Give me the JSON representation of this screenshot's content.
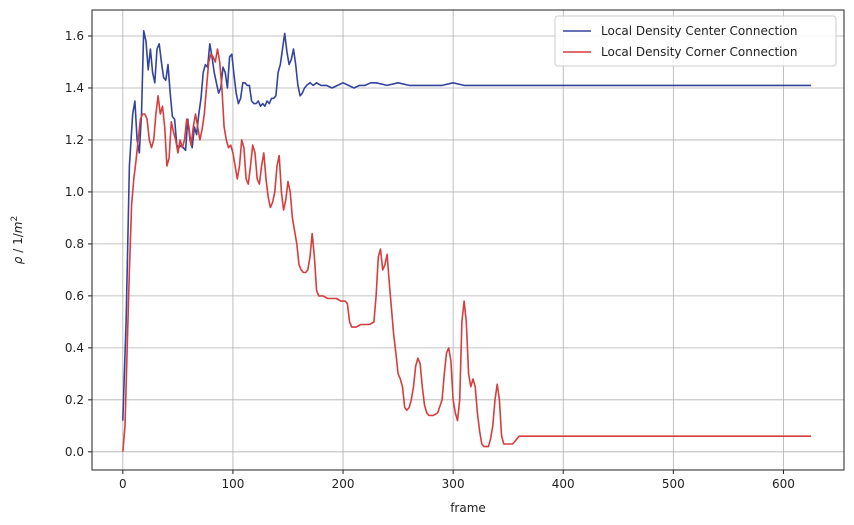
{
  "chart_data": {
    "type": "line",
    "xlabel": "frame",
    "ylabel_math": {
      "var": "ρ",
      "sep": " / 1/",
      "unit": "m",
      "exp": "2"
    },
    "xlim": [
      -28,
      655
    ],
    "ylim": [
      -0.07,
      1.7
    ],
    "xticks": [
      0,
      100,
      200,
      300,
      400,
      500,
      600
    ],
    "yticks": [
      0.0,
      0.2,
      0.4,
      0.6,
      0.8,
      1.0,
      1.2,
      1.4,
      1.6
    ],
    "ytick_labels": [
      "0.0",
      "0.2",
      "0.4",
      "0.6",
      "0.8",
      "1.0",
      "1.2",
      "1.4",
      "1.6"
    ],
    "grid": true,
    "legend_position": "top-right",
    "series": [
      {
        "name": "Local Density Center Connection",
        "color": "#33449c",
        "points": [
          [
            0,
            0.12
          ],
          [
            3,
            0.5
          ],
          [
            6,
            1.1
          ],
          [
            9,
            1.3
          ],
          [
            11,
            1.35
          ],
          [
            13,
            1.2
          ],
          [
            15,
            1.15
          ],
          [
            17,
            1.3
          ],
          [
            19,
            1.62
          ],
          [
            21,
            1.58
          ],
          [
            23,
            1.47
          ],
          [
            25,
            1.55
          ],
          [
            27,
            1.46
          ],
          [
            29,
            1.42
          ],
          [
            31,
            1.55
          ],
          [
            33,
            1.57
          ],
          [
            35,
            1.5
          ],
          [
            37,
            1.44
          ],
          [
            39,
            1.43
          ],
          [
            41,
            1.49
          ],
          [
            43,
            1.38
          ],
          [
            45,
            1.29
          ],
          [
            47,
            1.28
          ],
          [
            49,
            1.18
          ],
          [
            51,
            1.17
          ],
          [
            53,
            1.18
          ],
          [
            55,
            1.17
          ],
          [
            57,
            1.16
          ],
          [
            59,
            1.28
          ],
          [
            61,
            1.2
          ],
          [
            63,
            1.17
          ],
          [
            65,
            1.25
          ],
          [
            67,
            1.22
          ],
          [
            69,
            1.3
          ],
          [
            71,
            1.36
          ],
          [
            73,
            1.46
          ],
          [
            75,
            1.49
          ],
          [
            77,
            1.48
          ],
          [
            79,
            1.57
          ],
          [
            81,
            1.52
          ],
          [
            83,
            1.46
          ],
          [
            85,
            1.42
          ],
          [
            87,
            1.38
          ],
          [
            89,
            1.4
          ],
          [
            91,
            1.48
          ],
          [
            93,
            1.46
          ],
          [
            95,
            1.4
          ],
          [
            97,
            1.52
          ],
          [
            99,
            1.53
          ],
          [
            101,
            1.45
          ],
          [
            103,
            1.38
          ],
          [
            105,
            1.34
          ],
          [
            107,
            1.36
          ],
          [
            109,
            1.42
          ],
          [
            111,
            1.42
          ],
          [
            113,
            1.41
          ],
          [
            115,
            1.41
          ],
          [
            117,
            1.35
          ],
          [
            119,
            1.34
          ],
          [
            121,
            1.34
          ],
          [
            123,
            1.35
          ],
          [
            125,
            1.33
          ],
          [
            127,
            1.34
          ],
          [
            129,
            1.33
          ],
          [
            131,
            1.35
          ],
          [
            133,
            1.34
          ],
          [
            135,
            1.36
          ],
          [
            137,
            1.36
          ],
          [
            139,
            1.37
          ],
          [
            141,
            1.46
          ],
          [
            143,
            1.49
          ],
          [
            145,
            1.55
          ],
          [
            147,
            1.61
          ],
          [
            149,
            1.54
          ],
          [
            151,
            1.49
          ],
          [
            153,
            1.51
          ],
          [
            155,
            1.55
          ],
          [
            157,
            1.49
          ],
          [
            159,
            1.41
          ],
          [
            161,
            1.37
          ],
          [
            163,
            1.38
          ],
          [
            165,
            1.4
          ],
          [
            167,
            1.41
          ],
          [
            170,
            1.42
          ],
          [
            173,
            1.41
          ],
          [
            176,
            1.42
          ],
          [
            180,
            1.41
          ],
          [
            185,
            1.41
          ],
          [
            190,
            1.4
          ],
          [
            195,
            1.41
          ],
          [
            200,
            1.42
          ],
          [
            205,
            1.41
          ],
          [
            210,
            1.4
          ],
          [
            215,
            1.41
          ],
          [
            220,
            1.41
          ],
          [
            225,
            1.42
          ],
          [
            230,
            1.42
          ],
          [
            240,
            1.41
          ],
          [
            250,
            1.42
          ],
          [
            260,
            1.41
          ],
          [
            270,
            1.41
          ],
          [
            280,
            1.41
          ],
          [
            290,
            1.41
          ],
          [
            300,
            1.42
          ],
          [
            310,
            1.41
          ],
          [
            320,
            1.41
          ],
          [
            330,
            1.41
          ],
          [
            340,
            1.41
          ],
          [
            360,
            1.41
          ],
          [
            400,
            1.41
          ],
          [
            450,
            1.41
          ],
          [
            500,
            1.41
          ],
          [
            550,
            1.41
          ],
          [
            600,
            1.41
          ],
          [
            625,
            1.41
          ]
        ]
      },
      {
        "name": "Local Density Corner Connection",
        "color": "#d63d3d",
        "points": [
          [
            0,
            0.0
          ],
          [
            2,
            0.1
          ],
          [
            4,
            0.4
          ],
          [
            6,
            0.7
          ],
          [
            8,
            0.95
          ],
          [
            10,
            1.05
          ],
          [
            12,
            1.12
          ],
          [
            14,
            1.2
          ],
          [
            16,
            1.28
          ],
          [
            18,
            1.3
          ],
          [
            20,
            1.3
          ],
          [
            22,
            1.28
          ],
          [
            24,
            1.2
          ],
          [
            26,
            1.17
          ],
          [
            28,
            1.2
          ],
          [
            30,
            1.3
          ],
          [
            32,
            1.37
          ],
          [
            34,
            1.3
          ],
          [
            36,
            1.33
          ],
          [
            38,
            1.25
          ],
          [
            40,
            1.1
          ],
          [
            42,
            1.13
          ],
          [
            44,
            1.27
          ],
          [
            46,
            1.23
          ],
          [
            48,
            1.2
          ],
          [
            50,
            1.15
          ],
          [
            52,
            1.2
          ],
          [
            54,
            1.17
          ],
          [
            56,
            1.2
          ],
          [
            58,
            1.28
          ],
          [
            60,
            1.25
          ],
          [
            62,
            1.18
          ],
          [
            64,
            1.25
          ],
          [
            66,
            1.3
          ],
          [
            68,
            1.25
          ],
          [
            70,
            1.2
          ],
          [
            72,
            1.24
          ],
          [
            74,
            1.3
          ],
          [
            76,
            1.4
          ],
          [
            78,
            1.5
          ],
          [
            80,
            1.53
          ],
          [
            82,
            1.52
          ],
          [
            84,
            1.5
          ],
          [
            86,
            1.55
          ],
          [
            88,
            1.5
          ],
          [
            90,
            1.4
          ],
          [
            92,
            1.25
          ],
          [
            94,
            1.2
          ],
          [
            96,
            1.17
          ],
          [
            98,
            1.18
          ],
          [
            100,
            1.15
          ],
          [
            102,
            1.1
          ],
          [
            104,
            1.05
          ],
          [
            106,
            1.1
          ],
          [
            108,
            1.2
          ],
          [
            110,
            1.17
          ],
          [
            112,
            1.05
          ],
          [
            114,
            1.03
          ],
          [
            116,
            1.1
          ],
          [
            118,
            1.18
          ],
          [
            120,
            1.15
          ],
          [
            122,
            1.05
          ],
          [
            124,
            1.03
          ],
          [
            126,
            1.1
          ],
          [
            128,
            1.15
          ],
          [
            130,
            1.05
          ],
          [
            132,
            0.98
          ],
          [
            134,
            0.94
          ],
          [
            136,
            0.96
          ],
          [
            138,
            1.0
          ],
          [
            140,
            1.1
          ],
          [
            142,
            1.14
          ],
          [
            144,
            1.0
          ],
          [
            146,
            0.93
          ],
          [
            148,
            0.97
          ],
          [
            150,
            1.04
          ],
          [
            152,
            1.0
          ],
          [
            154,
            0.9
          ],
          [
            156,
            0.85
          ],
          [
            158,
            0.8
          ],
          [
            160,
            0.72
          ],
          [
            162,
            0.7
          ],
          [
            164,
            0.69
          ],
          [
            166,
            0.69
          ],
          [
            168,
            0.7
          ],
          [
            170,
            0.75
          ],
          [
            172,
            0.84
          ],
          [
            174,
            0.75
          ],
          [
            176,
            0.62
          ],
          [
            178,
            0.6
          ],
          [
            182,
            0.6
          ],
          [
            186,
            0.59
          ],
          [
            190,
            0.59
          ],
          [
            194,
            0.59
          ],
          [
            198,
            0.58
          ],
          [
            202,
            0.58
          ],
          [
            204,
            0.57
          ],
          [
            206,
            0.5
          ],
          [
            208,
            0.48
          ],
          [
            212,
            0.48
          ],
          [
            216,
            0.49
          ],
          [
            220,
            0.49
          ],
          [
            224,
            0.49
          ],
          [
            228,
            0.5
          ],
          [
            230,
            0.6
          ],
          [
            232,
            0.75
          ],
          [
            234,
            0.78
          ],
          [
            236,
            0.7
          ],
          [
            238,
            0.72
          ],
          [
            240,
            0.76
          ],
          [
            242,
            0.65
          ],
          [
            244,
            0.55
          ],
          [
            246,
            0.45
          ],
          [
            248,
            0.38
          ],
          [
            250,
            0.3
          ],
          [
            252,
            0.28
          ],
          [
            254,
            0.25
          ],
          [
            256,
            0.17
          ],
          [
            258,
            0.16
          ],
          [
            260,
            0.17
          ],
          [
            262,
            0.2
          ],
          [
            264,
            0.25
          ],
          [
            266,
            0.33
          ],
          [
            268,
            0.36
          ],
          [
            270,
            0.34
          ],
          [
            272,
            0.25
          ],
          [
            274,
            0.18
          ],
          [
            276,
            0.15
          ],
          [
            278,
            0.14
          ],
          [
            282,
            0.14
          ],
          [
            286,
            0.15
          ],
          [
            290,
            0.2
          ],
          [
            292,
            0.3
          ],
          [
            294,
            0.38
          ],
          [
            296,
            0.4
          ],
          [
            298,
            0.35
          ],
          [
            300,
            0.2
          ],
          [
            302,
            0.15
          ],
          [
            304,
            0.12
          ],
          [
            306,
            0.2
          ],
          [
            308,
            0.5
          ],
          [
            310,
            0.58
          ],
          [
            312,
            0.5
          ],
          [
            314,
            0.3
          ],
          [
            316,
            0.25
          ],
          [
            318,
            0.28
          ],
          [
            320,
            0.25
          ],
          [
            322,
            0.15
          ],
          [
            324,
            0.08
          ],
          [
            326,
            0.03
          ],
          [
            328,
            0.02
          ],
          [
            332,
            0.02
          ],
          [
            334,
            0.05
          ],
          [
            336,
            0.1
          ],
          [
            338,
            0.2
          ],
          [
            340,
            0.26
          ],
          [
            342,
            0.2
          ],
          [
            344,
            0.06
          ],
          [
            346,
            0.03
          ],
          [
            350,
            0.03
          ],
          [
            354,
            0.03
          ],
          [
            356,
            0.04
          ],
          [
            358,
            0.05
          ],
          [
            360,
            0.06
          ],
          [
            400,
            0.06
          ],
          [
            500,
            0.06
          ],
          [
            600,
            0.06
          ],
          [
            625,
            0.06
          ]
        ]
      }
    ]
  }
}
